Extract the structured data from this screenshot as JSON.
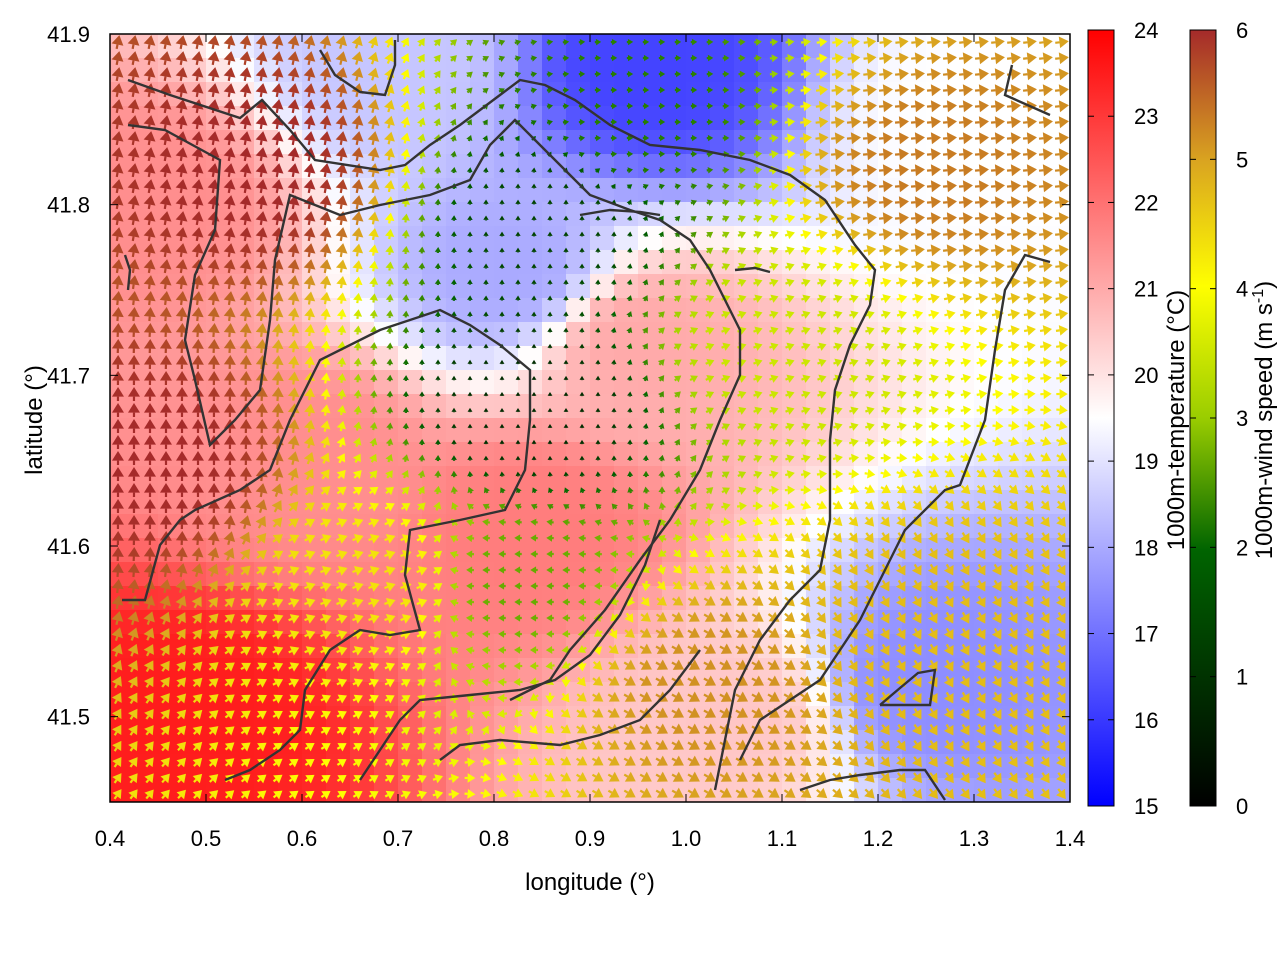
{
  "chart_data": {
    "type": "heatmap",
    "title": "",
    "xlabel": "longitude (°)",
    "ylabel": "latitude (°)",
    "xlim": [
      0.4,
      1.4
    ],
    "ylim": [
      41.45,
      41.9
    ],
    "xticks": [
      "0.4",
      "0.5",
      "0.6",
      "0.7",
      "0.8",
      "0.9",
      "1.0",
      "1.1",
      "1.2",
      "1.3",
      "1.4"
    ],
    "yticks": [
      "41.5",
      "41.6",
      "41.7",
      "41.8",
      "41.9"
    ],
    "layers": {
      "temperature": {
        "label": "1000m-temperature (°C)",
        "range": [
          15,
          24
        ],
        "ticks": [
          "15",
          "16",
          "17",
          "18",
          "19",
          "20",
          "21",
          "22",
          "23",
          "24"
        ],
        "colors": [
          "#0000ff",
          "#ffffff",
          "#ff0000"
        ]
      },
      "wind_speed": {
        "label_main": "1000m-wind speed (m s",
        "label_sup": "-1",
        "label_end": ")",
        "range": [
          0,
          6
        ],
        "ticks": [
          "0",
          "1",
          "2",
          "3",
          "4",
          "5",
          "6"
        ],
        "colors": [
          "#000000",
          "#006400",
          "#9acd00",
          "#ffff00",
          "#daa520",
          "#a52a2a"
        ]
      }
    },
    "temperature_regions": [
      {
        "lon": 0.48,
        "lat": 41.5,
        "value": 23.5
      },
      {
        "lon": 0.45,
        "lat": 41.8,
        "value": 21.5
      },
      {
        "lon": 0.6,
        "lat": 41.65,
        "value": 21.5
      },
      {
        "lon": 0.84,
        "lat": 41.61,
        "value": 21.8
      },
      {
        "lon": 0.95,
        "lat": 41.72,
        "value": 21.0
      },
      {
        "lon": 0.82,
        "lat": 41.76,
        "value": 18.0
      },
      {
        "lon": 0.96,
        "lat": 41.88,
        "value": 16.2
      },
      {
        "lon": 0.7,
        "lat": 41.88,
        "value": 18.5
      },
      {
        "lon": 1.05,
        "lat": 41.5,
        "value": 20.5
      },
      {
        "lon": 1.25,
        "lat": 41.52,
        "value": 17.5
      },
      {
        "lon": 1.3,
        "lat": 41.85,
        "value": 19.5
      }
    ],
    "wind_regions": [
      {
        "lon": 0.45,
        "lat": 41.65,
        "speed": 6.0,
        "dir_deg": 90
      },
      {
        "lon": 0.55,
        "lat": 41.82,
        "speed": 6.0,
        "dir_deg": 80
      },
      {
        "lon": 0.68,
        "lat": 41.58,
        "speed": 4.0,
        "dir_deg": 20
      },
      {
        "lon": 0.82,
        "lat": 41.58,
        "speed": 2.0,
        "dir_deg": 180
      },
      {
        "lon": 0.84,
        "lat": 41.68,
        "speed": 0.5,
        "dir_deg": 90
      },
      {
        "lon": 0.86,
        "lat": 41.79,
        "speed": 0.8,
        "dir_deg": 90
      },
      {
        "lon": 0.95,
        "lat": 41.85,
        "speed": 1.5,
        "dir_deg": 0
      },
      {
        "lon": 1.1,
        "lat": 41.72,
        "speed": 3.0,
        "dir_deg": 20
      },
      {
        "lon": 1.25,
        "lat": 41.82,
        "speed": 5.2,
        "dir_deg": 5
      },
      {
        "lon": 1.25,
        "lat": 41.55,
        "speed": 4.5,
        "dir_deg": 300
      },
      {
        "lon": 1.02,
        "lat": 41.52,
        "speed": 5.0,
        "dir_deg": 330
      }
    ],
    "grid": false,
    "legend": "right"
  }
}
